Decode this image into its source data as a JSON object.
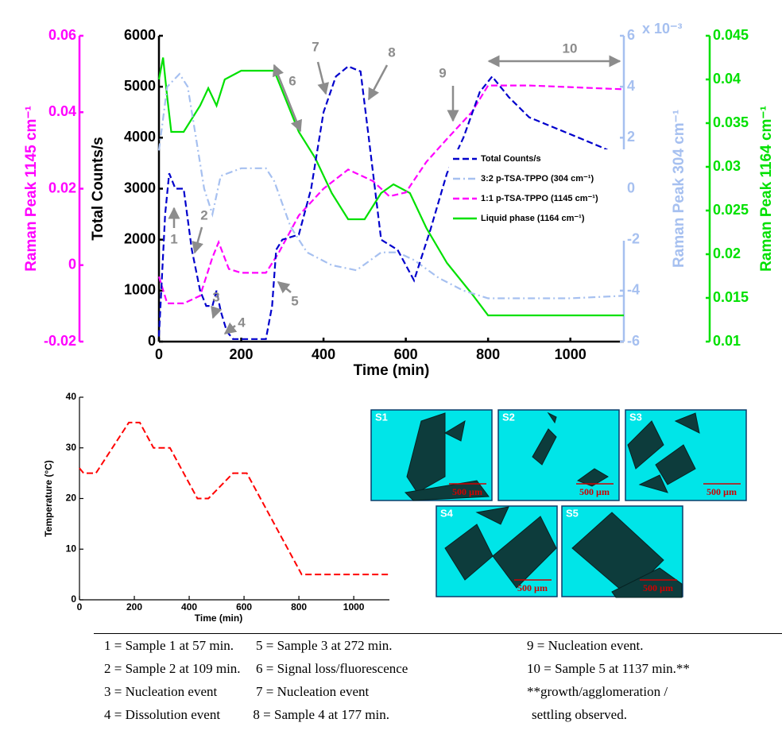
{
  "chart_data": [
    {
      "type": "line",
      "xlabel": "Time (min)",
      "ylabel": "Total Counts/s",
      "y2label": "Raman Peak 1145 cm⁻¹",
      "y3label": "Raman Peak 304 cm⁻¹",
      "y3_multiplier": "x 10⁻³",
      "y4label": "Raman Peak 1164 cm⁻¹",
      "xlim": [
        0,
        1130
      ],
      "xticks": [
        0,
        200,
        400,
        600,
        800,
        1000
      ],
      "ylim": [
        0,
        6000
      ],
      "yticks": [
        0,
        1000,
        2000,
        3000,
        4000,
        5000,
        6000
      ],
      "y2lim": [
        -0.02,
        0.06
      ],
      "y2ticks": [
        -0.02,
        0,
        0.02,
        0.04,
        0.06
      ],
      "y3lim": [
        -6,
        6
      ],
      "y3ticks": [
        -6,
        -4,
        -2,
        0,
        2,
        4,
        6
      ],
      "y4lim": [
        0.01,
        0.045
      ],
      "y4ticks": [
        0.01,
        0.015,
        0.02,
        0.025,
        0.03,
        0.035,
        0.04,
        0.045
      ],
      "series": [
        {
          "name": "Total Counts/s",
          "color": "#0000cc",
          "linestyle": "dashed",
          "axis": "y",
          "x": [
            0,
            15,
            25,
            40,
            60,
            80,
            100,
            115,
            130,
            140,
            150,
            165,
            180,
            220,
            260,
            275,
            285,
            300,
            340,
            370,
            400,
            430,
            460,
            490,
            510,
            540,
            580,
            620,
            660,
            700,
            740,
            780,
            810,
            850,
            900,
            960,
            1020,
            1080,
            1130
          ],
          "values": [
            100,
            2500,
            3300,
            3000,
            3000,
            1800,
            1000,
            700,
            700,
            1000,
            600,
            200,
            50,
            50,
            50,
            700,
            1800,
            2000,
            2100,
            3000,
            4500,
            5200,
            5400,
            5300,
            4000,
            2000,
            1800,
            1200,
            2200,
            3300,
            4000,
            4900,
            5200,
            4800,
            4400,
            4200,
            4000,
            3800,
            3600
          ]
        },
        {
          "name": "3:2 p-TSA-TPPO (304 cm⁻¹)",
          "color": "#a6c0f0",
          "linestyle": "dashdot",
          "axis": "y3",
          "x": [
            0,
            20,
            50,
            70,
            90,
            110,
            130,
            150,
            200,
            260,
            280,
            320,
            360,
            420,
            480,
            540,
            580,
            620,
            680,
            740,
            800,
            900,
            1000,
            1130
          ],
          "values": [
            1.5,
            4,
            4.5,
            4,
            2,
            0,
            -1,
            0.5,
            0.8,
            0.8,
            0.3,
            -1.5,
            -2.5,
            -3,
            -3.2,
            -2.5,
            -2.5,
            -2.8,
            -3.5,
            -4,
            -4.3,
            -4.3,
            -4.3,
            -4.2
          ]
        },
        {
          "name": "1:1 p-TSA-TPPO (1145 cm⁻¹)",
          "color": "#ff00ff",
          "linestyle": "dashed",
          "axis": "y2",
          "x": [
            0,
            20,
            60,
            100,
            130,
            145,
            170,
            200,
            260,
            290,
            340,
            400,
            460,
            520,
            560,
            600,
            650,
            700,
            760,
            800,
            900,
            1130
          ],
          "values": [
            -0.003,
            -0.01,
            -0.01,
            -0.008,
            0.002,
            0.006,
            -0.001,
            -0.002,
            -0.002,
            0.003,
            0.013,
            0.02,
            0.025,
            0.022,
            0.018,
            0.019,
            0.027,
            0.033,
            0.04,
            0.047,
            0.047,
            0.046
          ]
        },
        {
          "name": "Liquid phase (1164 cm⁻¹)",
          "color": "#00e000",
          "linestyle": "solid",
          "axis": "y4",
          "x": [
            0,
            10,
            20,
            30,
            60,
            100,
            120,
            140,
            160,
            200,
            260,
            280,
            340,
            380,
            420,
            460,
            500,
            540,
            570,
            610,
            650,
            700,
            760,
            800,
            900,
            1130
          ],
          "values": [
            0.04,
            0.0425,
            0.038,
            0.034,
            0.034,
            0.037,
            0.039,
            0.037,
            0.04,
            0.041,
            0.041,
            0.041,
            0.034,
            0.031,
            0.027,
            0.024,
            0.024,
            0.027,
            0.028,
            0.027,
            0.023,
            0.019,
            0.0155,
            0.013,
            0.013,
            0.013
          ]
        }
      ],
      "annotations": [
        "1",
        "2",
        "3",
        "4",
        "5",
        "6",
        "7",
        "8",
        "9",
        "10"
      ]
    },
    {
      "type": "line",
      "xlabel": "Time (min)",
      "ylabel": "Temperature (°C)",
      "xlim": [
        0,
        1130
      ],
      "xticks": [
        0,
        200,
        400,
        600,
        800,
        1000
      ],
      "ylim": [
        0,
        40
      ],
      "yticks": [
        0,
        10,
        20,
        30,
        40
      ],
      "series": [
        {
          "color": "#ff0000",
          "linestyle": "dashed",
          "x": [
            0,
            15,
            60,
            180,
            220,
            270,
            330,
            430,
            470,
            560,
            610,
            810,
            1130
          ],
          "values": [
            26,
            25,
            25,
            35,
            35,
            30,
            30,
            20,
            20,
            25,
            25,
            5,
            5
          ]
        }
      ]
    }
  ],
  "images": [
    {
      "label": "S1",
      "scale": "500 µm"
    },
    {
      "label": "S2",
      "scale": "500 µm"
    },
    {
      "label": "S3",
      "scale": "500 µm"
    },
    {
      "label": "S4",
      "scale": "500 µm"
    },
    {
      "label": "S5",
      "scale": "500 µm"
    }
  ],
  "notes": [
    [
      "1 = Sample 1 at 57 min.",
      "5 = Sample 3 at 272 min.",
      "9 = Nucleation event."
    ],
    [
      "2 = Sample 2 at 109 min.",
      "6 = Signal loss/fluorescence",
      "10 = Sample 5 at 1137 min.**"
    ],
    [
      "3 = Nucleation event",
      "7 = Nucleation event",
      "**growth/agglomeration /"
    ],
    [
      "4 = Dissolution event",
      "8 = Sample 4 at 177 min.",
      "settling observed."
    ]
  ]
}
